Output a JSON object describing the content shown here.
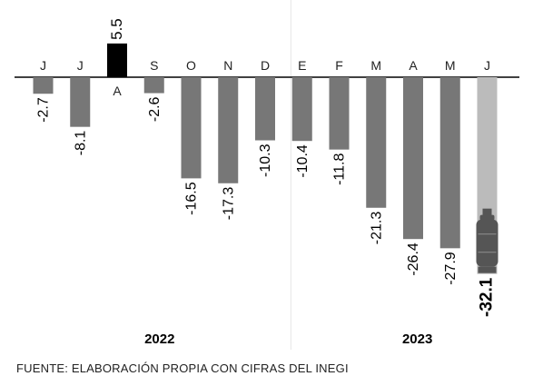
{
  "chart_data": {
    "type": "bar",
    "categories": [
      "J",
      "J",
      "A",
      "S",
      "O",
      "N",
      "D",
      "E",
      "F",
      "M",
      "A",
      "M",
      "J"
    ],
    "values": [
      -2.7,
      -8.1,
      5.5,
      -2.6,
      -16.5,
      -17.3,
      -10.3,
      -10.4,
      -11.8,
      -21.3,
      -26.4,
      -27.9,
      -32.1
    ],
    "value_labels": [
      "-2.7",
      "-8.1",
      "5.5",
      "-2.6",
      "-16.5",
      "-17.3",
      "-10.3",
      "-10.4",
      "-11.8",
      "-21.3",
      "-26.4",
      "-27.9",
      "-32.1"
    ],
    "year_groups": [
      {
        "label": "2022",
        "count": 7
      },
      {
        "label": "2023",
        "count": 6
      }
    ],
    "highlight_positive_index": 2,
    "highlight_last_index": 12,
    "ylim": [
      -33,
      6
    ],
    "grid": false,
    "colors": {
      "negative": "#777777",
      "positive": "#000000",
      "last": "#bbbbbb",
      "last_icon": "#555555",
      "divider": "#e6e6e6"
    },
    "last_bar_icon": "gas-cylinder-icon"
  },
  "source": "FUENTE: ELABORACIÓN PROPIA CON CIFRAS DEL INEGI"
}
